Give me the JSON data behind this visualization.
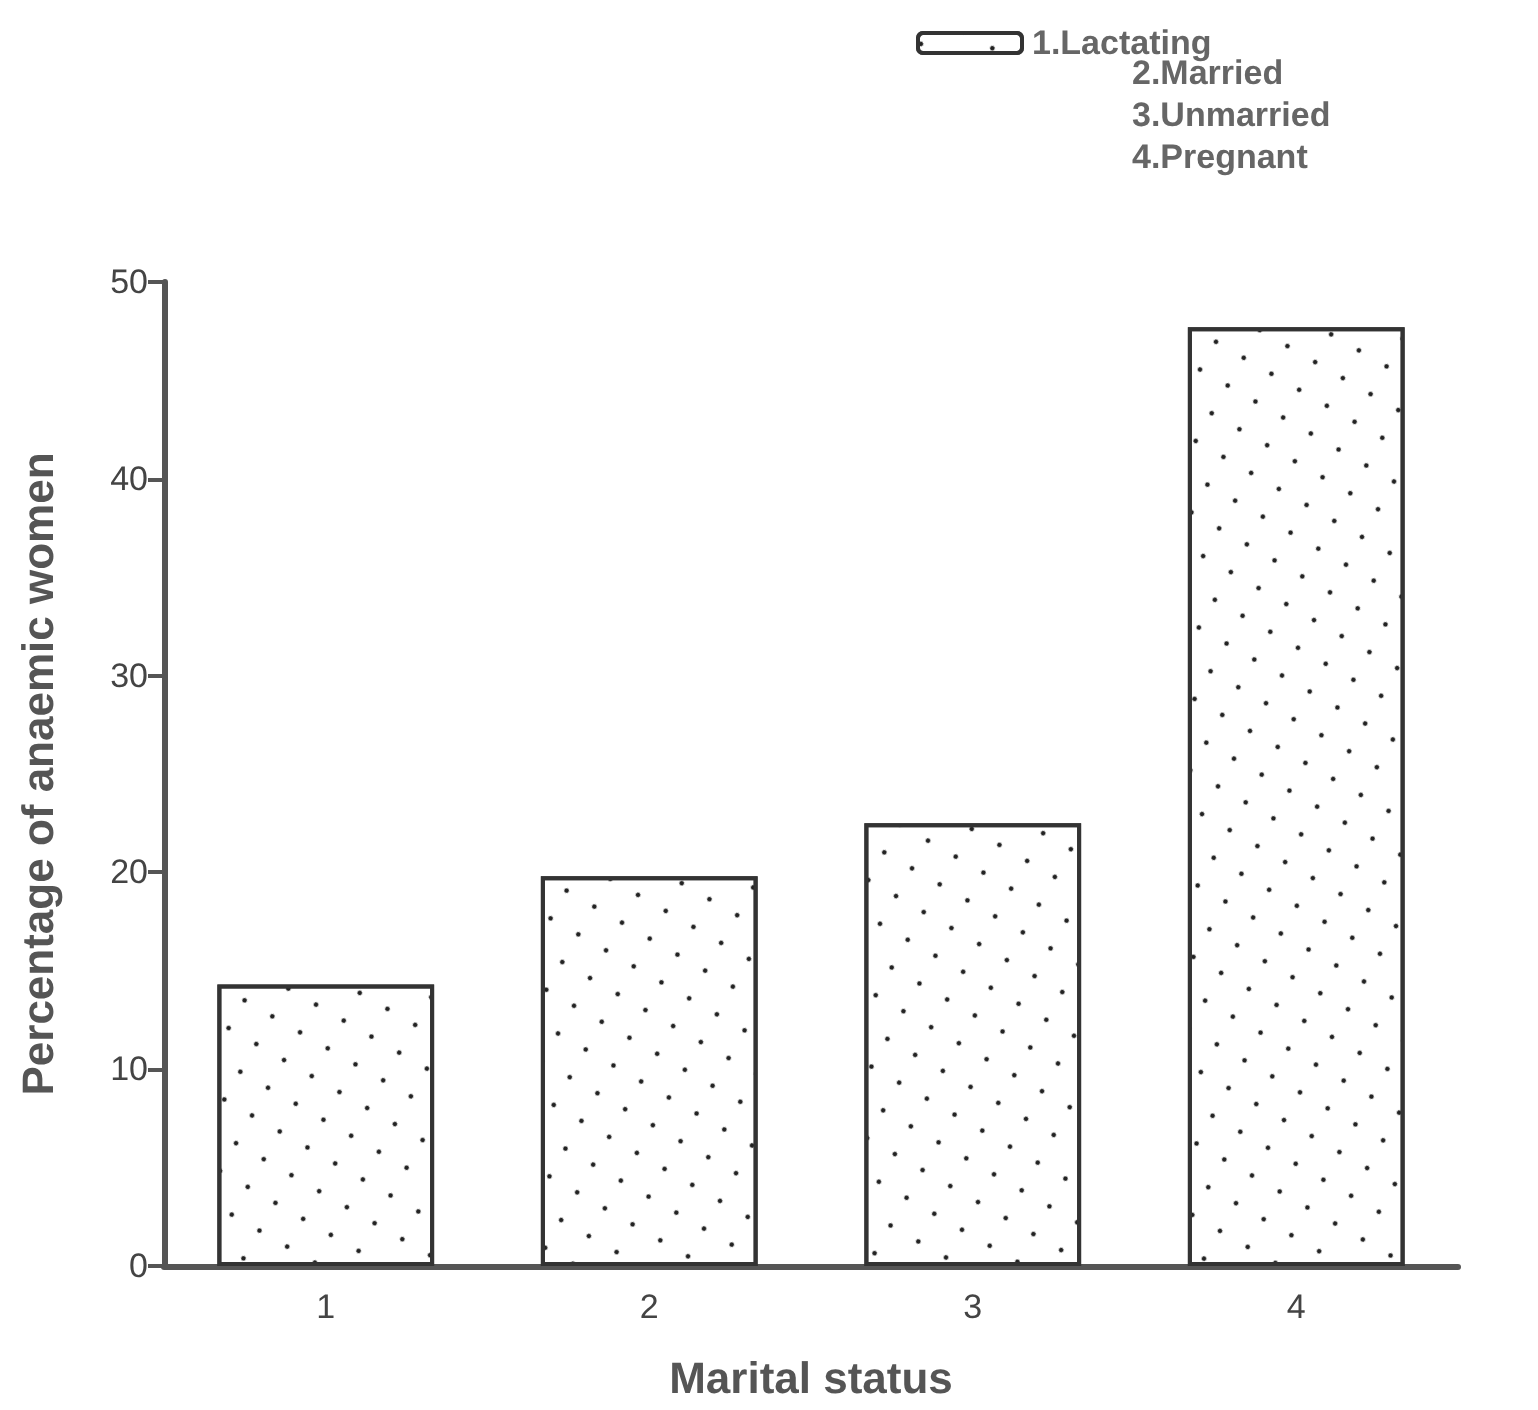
{
  "chart_data": {
    "type": "bar",
    "xlabel": "Marital status",
    "ylabel": "Percentage of anaemic women",
    "categories": [
      "1",
      "2",
      "3",
      "4"
    ],
    "series": [
      {
        "name": "1.Lactating",
        "color": "#ffffff",
        "values": [
          14.3,
          19.8,
          22.5,
          47.7
        ]
      }
    ],
    "annotations": [
      "2.Married",
      "3.Unmarried",
      "4.Pregnant"
    ],
    "ylim": [
      0,
      50
    ],
    "yticks": [
      0,
      10,
      20,
      30,
      40,
      50
    ],
    "grid": false,
    "legend": "top right"
  }
}
